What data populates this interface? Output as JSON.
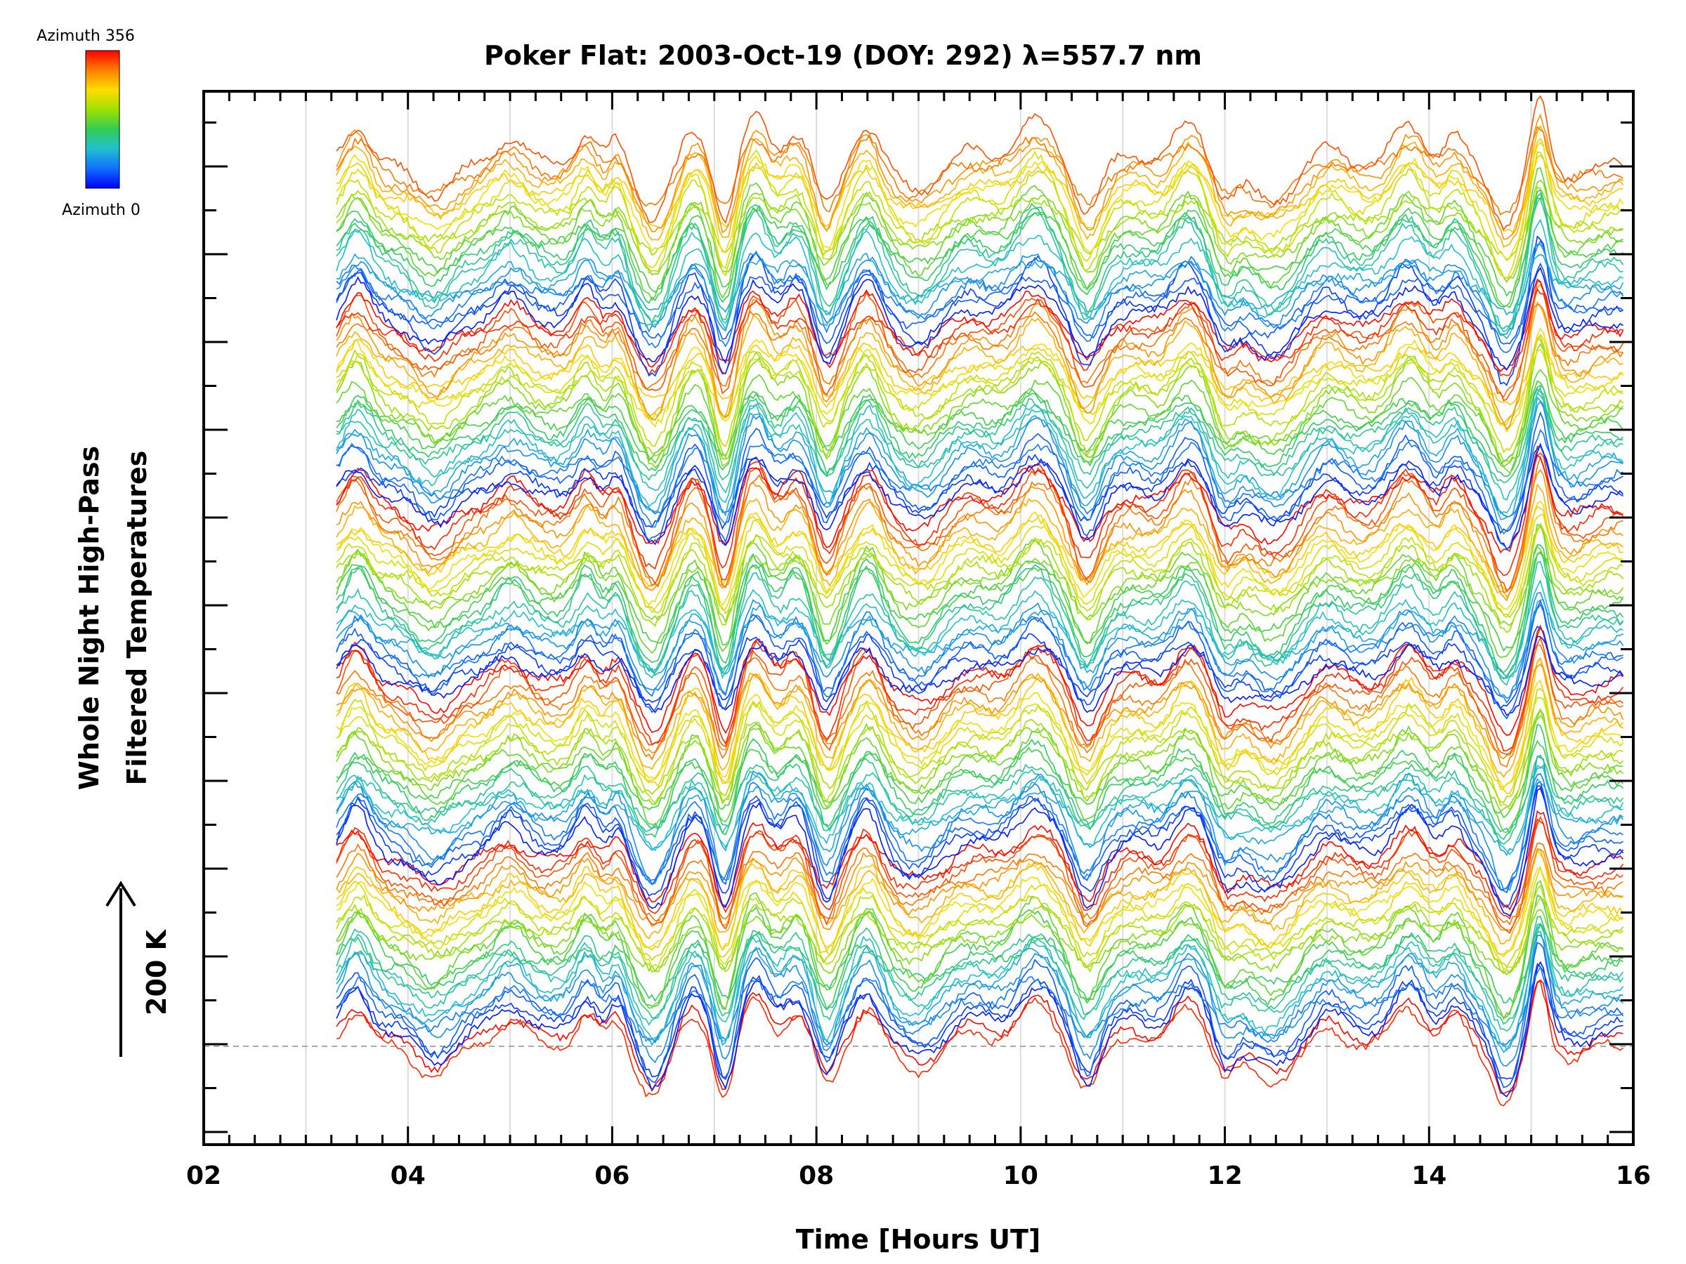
{
  "chart_data": {
    "type": "line",
    "title": "Poker Flat: 2003-Oct-19 (DOY: 292) λ=557.7 nm",
    "xlabel": "Time [Hours UT]",
    "ylabel_line1": "Whole Night High-Pass",
    "ylabel_line2": "Filtered Temperatures",
    "scale_label": "200 K",
    "xlim": [
      2,
      16
    ],
    "x_ticks": [
      2,
      4,
      6,
      8,
      10,
      12,
      14,
      16
    ],
    "x_tick_labels": [
      "02",
      "04",
      "06",
      "08",
      "10",
      "12",
      "14",
      "16"
    ],
    "x_minor_step": 0.25,
    "vertical_grid_hours": [
      3,
      4,
      5,
      6,
      7,
      8,
      9,
      10,
      11,
      12,
      13,
      14,
      15
    ],
    "data_time_range": [
      3.3,
      15.9
    ],
    "colorbar": {
      "top_label": "Azimuth 356",
      "bottom_label": "Azimuth 0",
      "colors": [
        "#ff0000",
        "#ff7f00",
        "#ffdd00",
        "#a0e000",
        "#33cc55",
        "#20c0d0",
        "#1070ff",
        "#0000ff"
      ]
    },
    "series_count": 120,
    "grid": "vertical lines only",
    "baseline": "dashed horizontal line at lowest stacked offset"
  }
}
